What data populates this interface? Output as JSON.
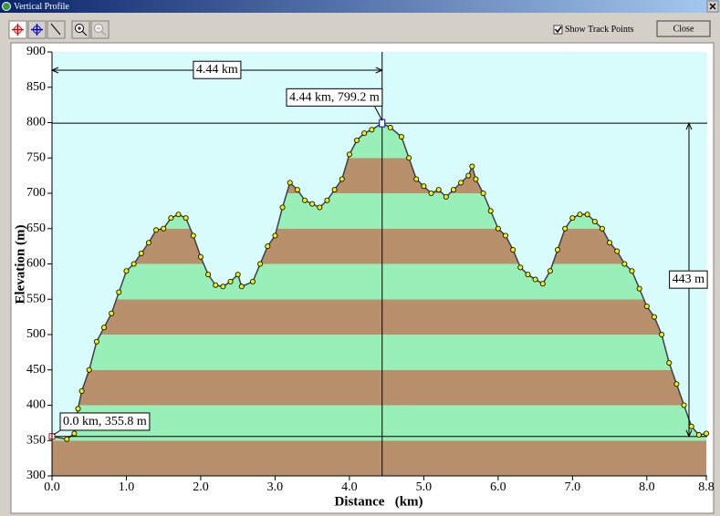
{
  "window": {
    "title": "Vertical Profile",
    "checkbox_label": "Show Track Points",
    "button_label": "Close"
  },
  "chart_data": {
    "type": "area",
    "x_label": "Distance   (km)",
    "y_label": "Elevation (m)",
    "x": [
      0,
      0.2,
      0.3,
      0.35,
      0.4,
      0.5,
      0.6,
      0.7,
      0.8,
      0.9,
      1.0,
      1.1,
      1.2,
      1.3,
      1.4,
      1.5,
      1.6,
      1.7,
      1.8,
      1.9,
      2.0,
      2.1,
      2.2,
      2.3,
      2.4,
      2.5,
      2.55,
      2.7,
      2.8,
      2.9,
      3.0,
      3.1,
      3.2,
      3.3,
      3.4,
      3.5,
      3.6,
      3.7,
      3.8,
      3.9,
      4.0,
      4.1,
      4.2,
      4.3,
      4.44,
      4.55,
      4.7,
      4.8,
      4.9,
      5.0,
      5.1,
      5.2,
      5.3,
      5.4,
      5.5,
      5.6,
      5.65,
      5.7,
      5.8,
      5.9,
      6.0,
      6.1,
      6.2,
      6.3,
      6.4,
      6.5,
      6.6,
      6.7,
      6.8,
      6.9,
      7.0,
      7.1,
      7.2,
      7.3,
      7.4,
      7.5,
      7.6,
      7.7,
      7.8,
      7.9,
      8.0,
      8.1,
      8.2,
      8.3,
      8.4,
      8.5,
      8.6,
      8.7,
      8.8
    ],
    "y": [
      355.8,
      352,
      360,
      395,
      420,
      450,
      490,
      510,
      530,
      560,
      590,
      600,
      615,
      630,
      648,
      650,
      665,
      670,
      665,
      640,
      610,
      585,
      570,
      568,
      575,
      585,
      568,
      575,
      600,
      625,
      640,
      680,
      715,
      705,
      690,
      685,
      680,
      690,
      705,
      720,
      755,
      775,
      785,
      790,
      799.2,
      793,
      780,
      750,
      720,
      710,
      700,
      705,
      695,
      705,
      715,
      725,
      738,
      720,
      700,
      675,
      650,
      640,
      620,
      595,
      585,
      578,
      572,
      590,
      620,
      650,
      665,
      670,
      670,
      660,
      650,
      630,
      618,
      600,
      590,
      565,
      540,
      525,
      500,
      460,
      430,
      400,
      370,
      358,
      360
    ],
    "xlim": [
      0,
      8.8
    ],
    "ylim": [
      300,
      900
    ],
    "xticks": [
      {
        "value": 0,
        "label": "0.0"
      },
      {
        "value": 1,
        "label": "1.0"
      },
      {
        "value": 2,
        "label": "2.0"
      },
      {
        "value": 3,
        "label": "3.0"
      },
      {
        "value": 4,
        "label": "4.0"
      },
      {
        "value": 5,
        "label": "5.0"
      },
      {
        "value": 6,
        "label": "6.0"
      },
      {
        "value": 7,
        "label": "7.0"
      },
      {
        "value": 8,
        "label": "8.0"
      },
      {
        "value": 8.8,
        "label": "8.8"
      }
    ],
    "yticks": [
      300,
      350,
      400,
      450,
      500,
      550,
      600,
      650,
      700,
      750,
      800,
      850,
      900
    ],
    "background": "#d8fcfc",
    "band_colors": [
      "#b8906c",
      "#98f0b8"
    ],
    "line_color": "#404040",
    "point_color": "#f0f000",
    "show_points": true,
    "cursor": {
      "x": 4.44,
      "y": 799.2,
      "label": "4.44 km, 799.2 m"
    },
    "distance_label": "4.44 km",
    "start": {
      "x": 0,
      "y": 355.8,
      "label": "0.0 km, 355.8 m"
    },
    "rise": {
      "value": 443,
      "label": "443 m"
    }
  }
}
